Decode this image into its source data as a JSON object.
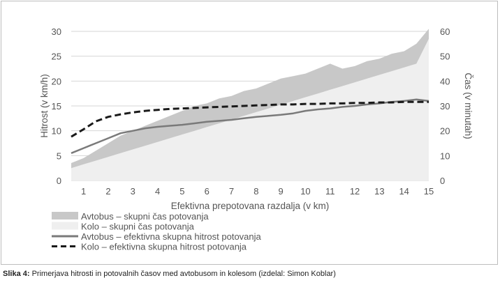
{
  "caption": {
    "label": "Slika 4:",
    "text": " Primerjava hitrosti in potovalnih časov med avtobusom in kolesom (izdelal: Simon Koblar)"
  },
  "colors": {
    "bus_time": "#c8c8c8",
    "bike_time": "#efefef",
    "bus_speed": "#7a7a7a",
    "bike_speed": "#1a1a1a",
    "axis_text": "#555555",
    "grid": "#d6d6d6"
  },
  "chart_data": {
    "type": "line",
    "xlabel": "Efektivna prepotovana razdalja (v km)",
    "ylabel_left": "Hitrost (v km/h)",
    "ylabel_right": "Čas (v minutah)",
    "x_ticks": [
      "1",
      "2",
      "3",
      "4",
      "5",
      "6",
      "7",
      "8",
      "9",
      "10",
      "11",
      "12",
      "13",
      "14",
      "15"
    ],
    "y_left_ticks": [
      "0",
      "5",
      "10",
      "15",
      "20",
      "25",
      "30"
    ],
    "y_right_ticks": [
      "0",
      "10",
      "20",
      "30",
      "40",
      "50",
      "60"
    ],
    "xlim": [
      0.5,
      15
    ],
    "ylim_left": [
      0,
      30
    ],
    "ylim_right": [
      0,
      60
    ],
    "grid": true,
    "legend_position": "bottom-left",
    "x": [
      0.5,
      1,
      1.5,
      2,
      2.5,
      3,
      3.5,
      4,
      4.5,
      5,
      5.5,
      6,
      6.5,
      7,
      7.5,
      8,
      8.5,
      9,
      9.5,
      10,
      10.5,
      11,
      11.5,
      12,
      12.5,
      13,
      13.5,
      14,
      14.5,
      15
    ],
    "series": [
      {
        "name": "Avtobus –  skupni čas potovanja",
        "axis": "right",
        "style": "area",
        "values": [
          7,
          9,
          12,
          15,
          18,
          20,
          22,
          24,
          26,
          28,
          30,
          31,
          33,
          34,
          36,
          37,
          39,
          41,
          42,
          43,
          45,
          47,
          45,
          46,
          48,
          49,
          51,
          52,
          55,
          61
        ]
      },
      {
        "name": "Kolo – skupni čas potovanja",
        "axis": "right",
        "style": "area",
        "values": [
          5,
          6.5,
          8,
          9.5,
          11,
          12.5,
          14,
          15.5,
          17,
          18.5,
          20,
          21.5,
          23,
          24.5,
          26,
          27.5,
          29,
          30.5,
          32,
          33.5,
          35,
          36.5,
          38,
          39.5,
          41,
          42.5,
          44,
          45.5,
          47,
          57
        ]
      },
      {
        "name": "Avtobus – efektivna skupna hitrost potovanja",
        "axis": "left",
        "style": "line",
        "values": [
          5.5,
          6.5,
          7.5,
          8.5,
          9.5,
          10,
          10.5,
          10.8,
          11,
          11.2,
          11.5,
          11.8,
          12,
          12.2,
          12.5,
          12.8,
          13,
          13.2,
          13.5,
          14,
          14.3,
          14.5,
          14.8,
          15,
          15.3,
          15.5,
          15.8,
          16,
          16.3,
          16
        ]
      },
      {
        "name": "Kolo – efektivna skupna hitrost potovanja",
        "axis": "left",
        "style": "dashed",
        "values": [
          8.8,
          10.3,
          11.9,
          12.8,
          13.3,
          13.7,
          14.0,
          14.2,
          14.4,
          14.5,
          14.6,
          14.7,
          14.8,
          14.9,
          15.0,
          15.1,
          15.2,
          15.3,
          15.3,
          15.4,
          15.4,
          15.5,
          15.5,
          15.6,
          15.6,
          15.7,
          15.7,
          15.8,
          15.8,
          15.8
        ]
      }
    ]
  }
}
